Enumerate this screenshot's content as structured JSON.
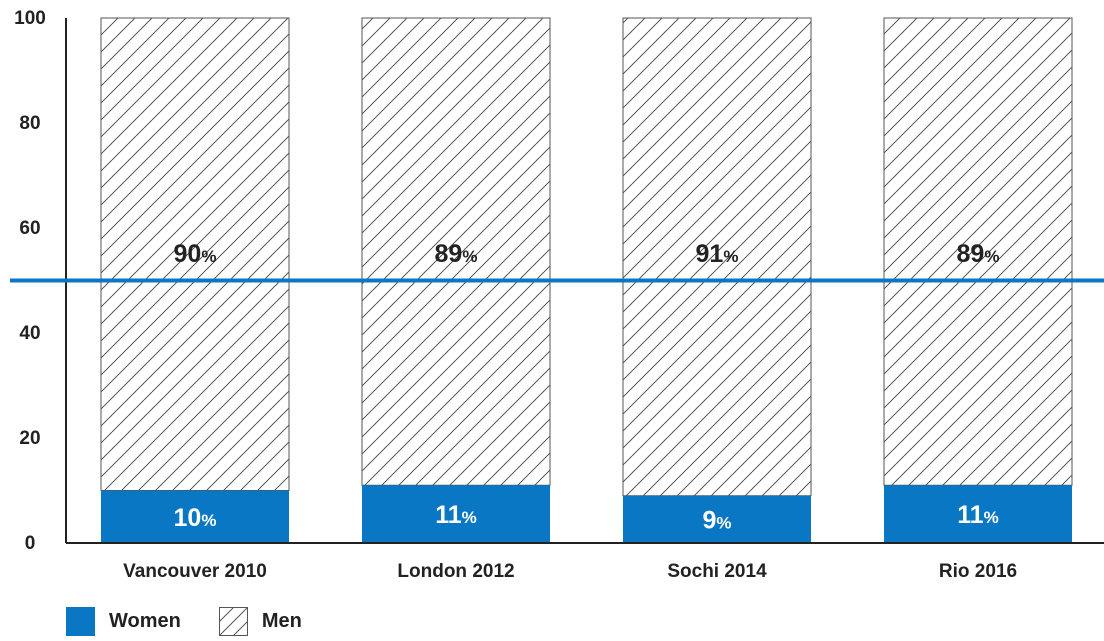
{
  "chart_data": {
    "type": "bar",
    "stacked": true,
    "categories": [
      "Vancouver 2010",
      "London 2012",
      "Sochi 2014",
      "Rio 2016"
    ],
    "series": [
      {
        "name": "Women",
        "values": [
          10,
          11,
          9,
          11
        ],
        "color": "#0a77c4",
        "fill": "solid"
      },
      {
        "name": "Men",
        "values": [
          90,
          89,
          91,
          89
        ],
        "color": "#444444",
        "fill": "diagonal-hatch"
      }
    ],
    "value_labels": {
      "Women": [
        "10",
        "11",
        "9",
        "11"
      ],
      "Men": [
        "90",
        "89",
        "91",
        "89"
      ]
    },
    "value_suffix": "%",
    "ylim": [
      0,
      100
    ],
    "yticks": [
      0,
      20,
      40,
      60,
      80,
      100
    ],
    "reference_line": {
      "y": 50,
      "color": "#0a77c4"
    },
    "grid": false,
    "legend_position": "bottom-left",
    "title": "",
    "xlabel": "",
    "ylabel": ""
  }
}
